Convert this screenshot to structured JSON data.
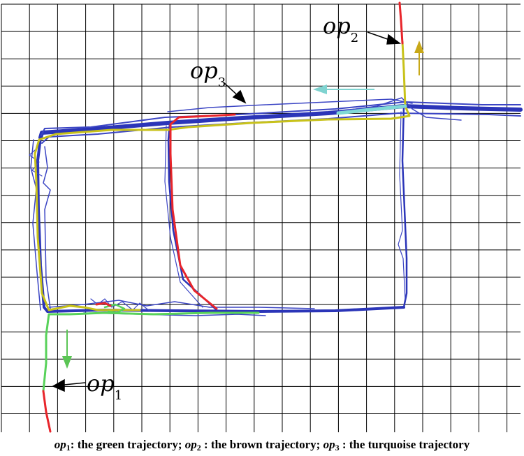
{
  "colors": {
    "grid": "#000000",
    "road": "#2b35b8",
    "yellow": "#c8c21a",
    "red": "#e8252b",
    "green": "#58d25a",
    "turquoise": "#80d9d6",
    "arrow_yellow": "#c8a818",
    "arrow_turquoise": "#7fd3d0",
    "arrow_green": "#5bc555"
  },
  "labels": {
    "op1": {
      "main": "op",
      "sub": "1"
    },
    "op2": {
      "main": "op",
      "sub": "2"
    },
    "op3": {
      "main": "op",
      "sub": "3"
    }
  },
  "caption": {
    "op1": {
      "main": "op",
      "sub": "1"
    },
    "text1": ": the green trajectory; ",
    "op2": {
      "main": "op",
      "sub": "2"
    },
    "text2": " : the brown trajectory; ",
    "op3": {
      "main": "op",
      "sub": "3"
    },
    "text3": " : the turquoise trajectory"
  },
  "icons": {
    "direction_arrows": "arrow-icon",
    "pointer_arrows": "pointer-arrow-icon"
  }
}
